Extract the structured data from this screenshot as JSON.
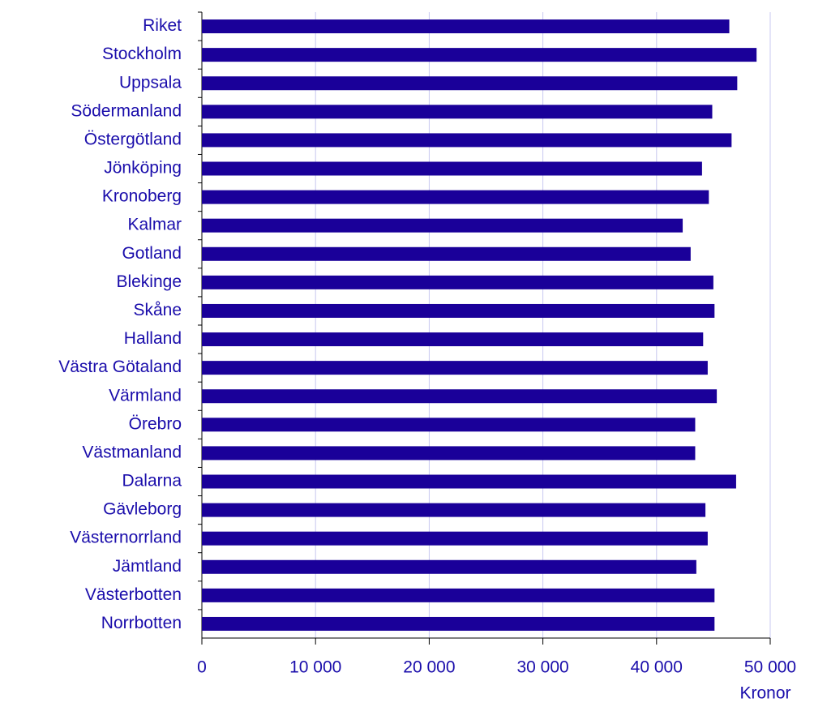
{
  "chart_data": {
    "type": "bar",
    "orientation": "horizontal",
    "categories": [
      "Riket",
      "Stockholm",
      "Uppsala",
      "Södermanland",
      "Östergötland",
      "Jönköping",
      "Kronoberg",
      "Kalmar",
      "Gotland",
      "Blekinge",
      "Skåne",
      "Halland",
      "Västra Götaland",
      "Värmland",
      "Örebro",
      "Västmanland",
      "Dalarna",
      "Gävleborg",
      "Västernorrland",
      "Jämtland",
      "Västerbotten",
      "Norrbotten"
    ],
    "values": [
      46400,
      48800,
      47100,
      44900,
      46600,
      44000,
      44600,
      42300,
      43000,
      45000,
      45100,
      44100,
      44500,
      45300,
      43400,
      43400,
      47000,
      44300,
      44500,
      43500,
      45100,
      45100
    ],
    "color": "#1a0099",
    "xlim": [
      0,
      50000
    ],
    "xticks": [
      0,
      {
        "value": 10000,
        "label": "10 000"
      },
      {
        "value": 20000,
        "label": "20 000"
      },
      {
        "value": 30000,
        "label": "30 000"
      },
      {
        "value": 40000,
        "label": "40 000"
      },
      {
        "value": 50000,
        "label": "50 000"
      }
    ],
    "x_label": "Kronor",
    "grid": true
  }
}
